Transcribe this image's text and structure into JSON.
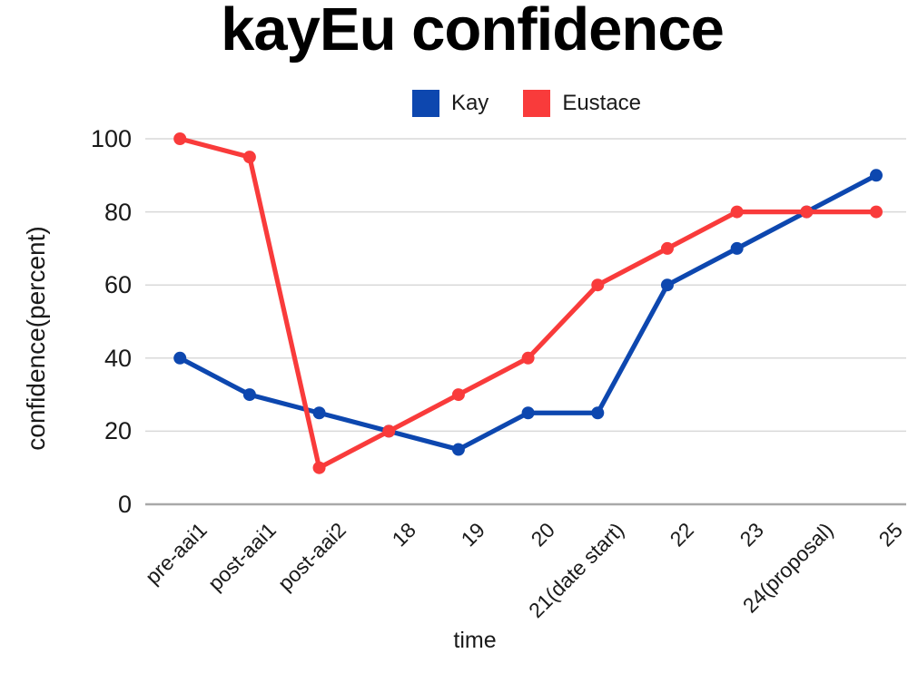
{
  "chart": {
    "title": "kayEu confidence",
    "x_axis_label": "time",
    "y_axis_label": "confidence(percent)"
  },
  "chart_data": {
    "type": "line",
    "title": "kayEu confidence",
    "xlabel": "time",
    "ylabel": "confidence(percent)",
    "categories": [
      "pre-aai1",
      "post-aai1",
      "post-aai2",
      "18",
      "19",
      "20",
      "21(date start)",
      "22",
      "23",
      "24(proposal)",
      "25"
    ],
    "series": [
      {
        "name": "Kay",
        "color": "#0d47af",
        "values": [
          40,
          30,
          25,
          20,
          15,
          25,
          25,
          60,
          70,
          80,
          90
        ]
      },
      {
        "name": "Eustace",
        "color": "#f93b3b",
        "values": [
          100,
          95,
          10,
          20,
          30,
          40,
          60,
          70,
          80,
          80,
          80
        ]
      }
    ],
    "ylim": [
      0,
      100
    ],
    "y_ticks": [
      0,
      20,
      40,
      60,
      80,
      100
    ],
    "grid": true,
    "legend_position": "top"
  },
  "colors": {
    "background": "#ffffff",
    "grid": "#d9d9d9",
    "axis": "#a8a8a8",
    "text": "#1a1a1a",
    "title": "#000000",
    "kay_blue": "#0d47af",
    "eustace_red": "#f93b3b"
  }
}
